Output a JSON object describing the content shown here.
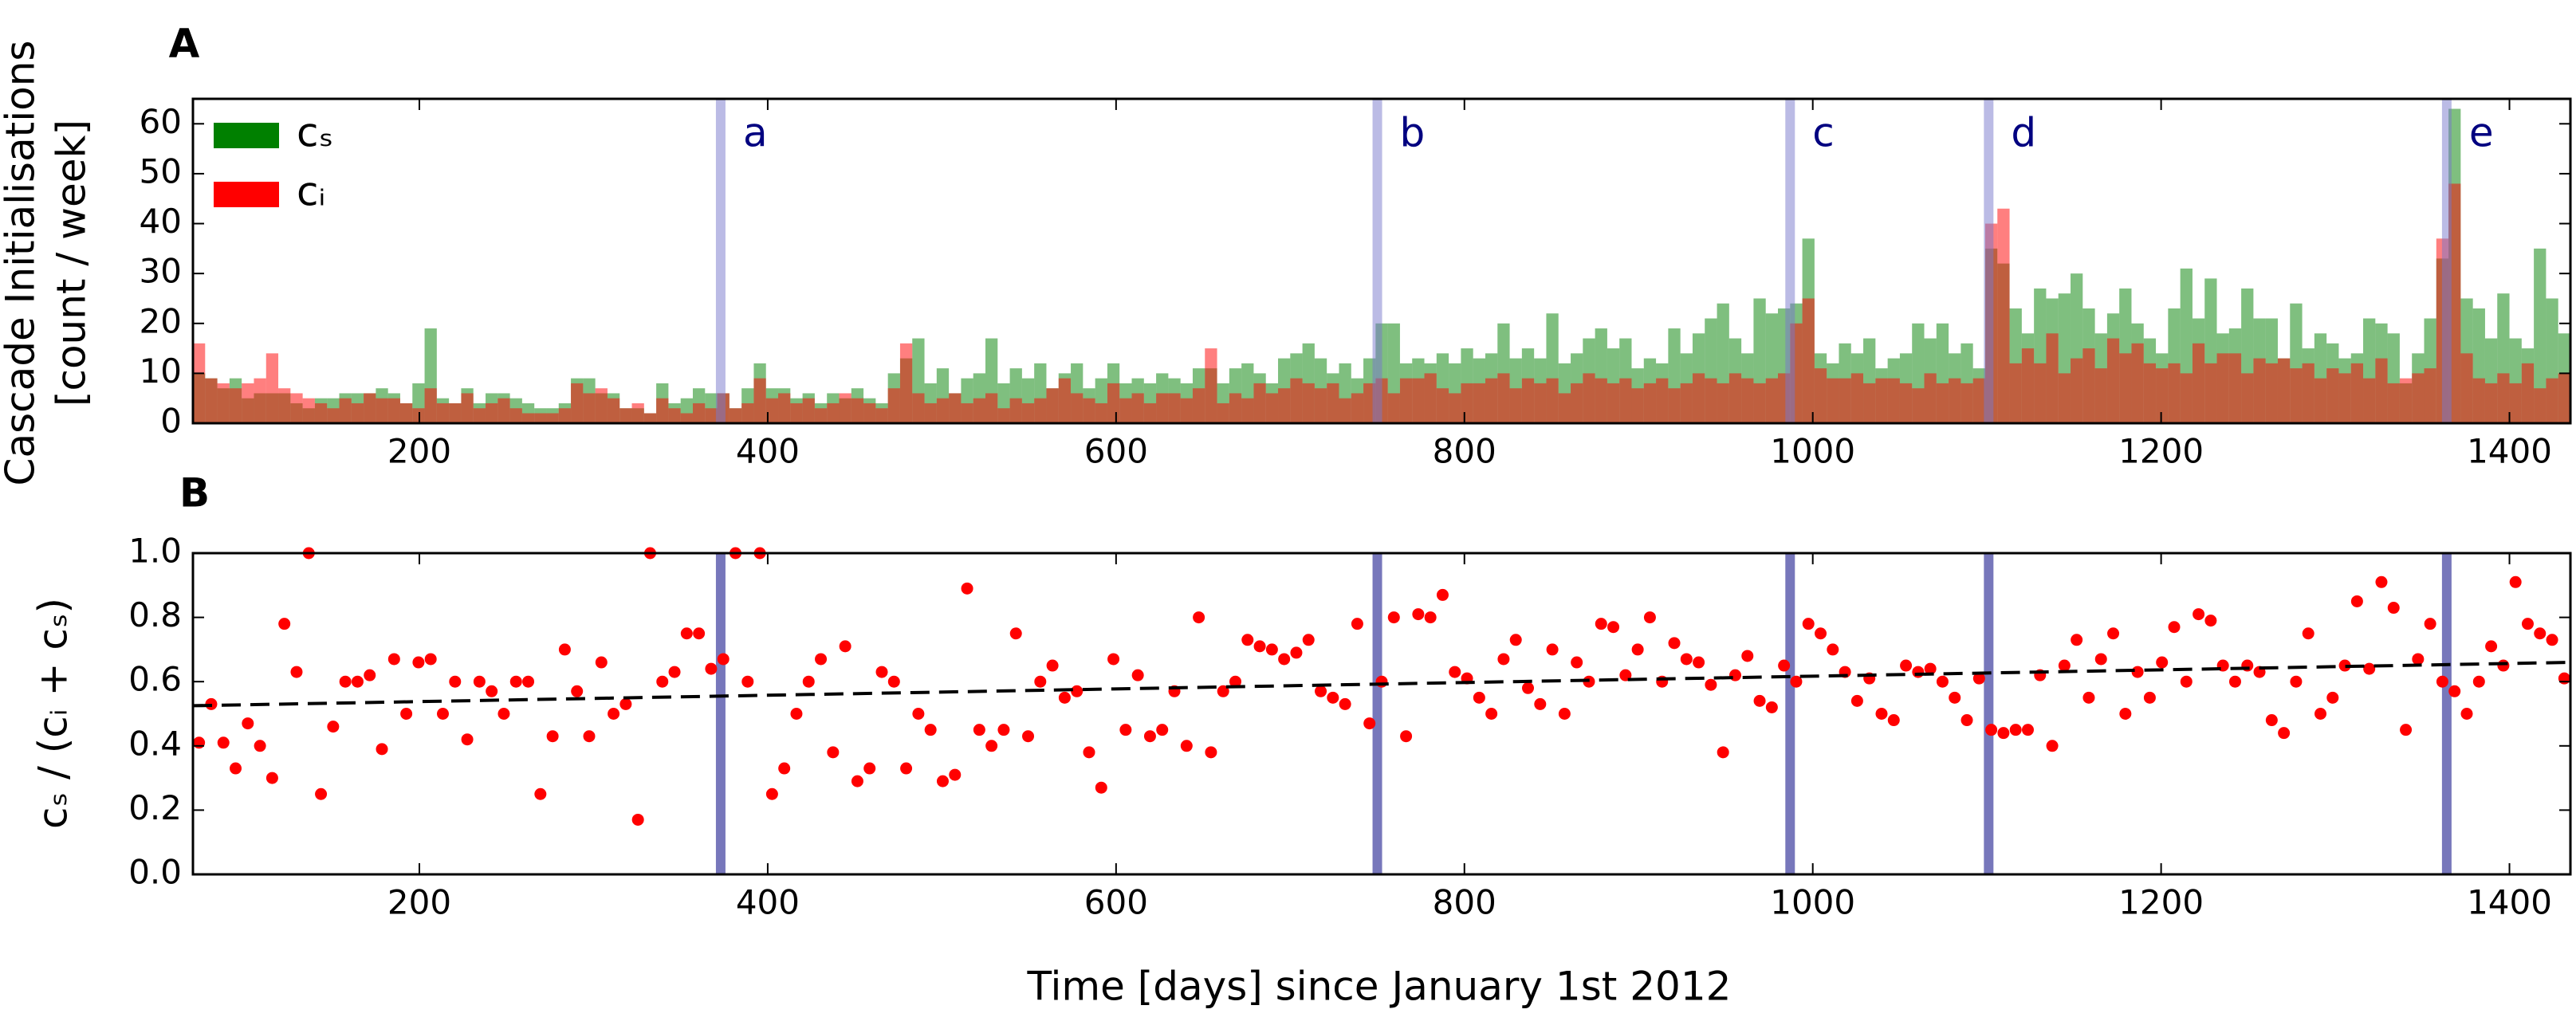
{
  "chart_data": [
    {
      "type": "histogram",
      "panel_label": "A",
      "ylabel": [
        "Cascade Initialisations",
        "[count / week]"
      ],
      "xlim": [
        70,
        1435
      ],
      "ylim": [
        0,
        65
      ],
      "xticks": [
        200,
        400,
        600,
        800,
        1000,
        1200,
        1400
      ],
      "yticks": [
        0,
        10,
        20,
        30,
        40,
        50,
        60
      ],
      "legend": "upper left",
      "events": [
        {
          "x": 373,
          "label": "a"
        },
        {
          "x": 750,
          "label": "b"
        },
        {
          "x": 987,
          "label": "c"
        },
        {
          "x": 1101,
          "label": "d"
        },
        {
          "x": 1364,
          "label": "e"
        }
      ],
      "bins": [
        70,
        77,
        84,
        91,
        98,
        105,
        112,
        119,
        126,
        133,
        140,
        147,
        154,
        161,
        168,
        175,
        182,
        189,
        196,
        203,
        210,
        217,
        224,
        231,
        238,
        245,
        252,
        259,
        266,
        273,
        280,
        287,
        294,
        301,
        308,
        315,
        322,
        329,
        336,
        343,
        350,
        357,
        364,
        371,
        378,
        385,
        392,
        399,
        406,
        413,
        420,
        427,
        434,
        441,
        448,
        455,
        462,
        469,
        476,
        483,
        490,
        497,
        504,
        511,
        518,
        525,
        532,
        539,
        546,
        553,
        560,
        567,
        574,
        581,
        588,
        595,
        602,
        609,
        616,
        623,
        630,
        637,
        644,
        651,
        658,
        665,
        672,
        679,
        686,
        693,
        700,
        707,
        714,
        721,
        728,
        735,
        742,
        749,
        756,
        763,
        770,
        777,
        784,
        791,
        798,
        805,
        812,
        819,
        826,
        833,
        840,
        847,
        854,
        861,
        868,
        875,
        882,
        889,
        896,
        903,
        910,
        917,
        924,
        931,
        938,
        945,
        952,
        959,
        966,
        973,
        980,
        987,
        994,
        1001,
        1008,
        1015,
        1022,
        1029,
        1036,
        1043,
        1050,
        1057,
        1064,
        1071,
        1078,
        1085,
        1092,
        1099,
        1106,
        1113,
        1120,
        1127,
        1134,
        1141,
        1148,
        1155,
        1162,
        1169,
        1176,
        1183,
        1190,
        1197,
        1204,
        1211,
        1218,
        1225,
        1232,
        1239,
        1246,
        1253,
        1260,
        1267,
        1274,
        1281,
        1288,
        1295,
        1302,
        1309,
        1316,
        1323,
        1330,
        1337,
        1344,
        1351,
        1358,
        1365,
        1372,
        1379,
        1386,
        1393,
        1400,
        1407,
        1414,
        1421,
        1428,
        1435
      ],
      "series": [
        {
          "name": "cₛ",
          "color": "#008000",
          "values": [
            10,
            9,
            7,
            9,
            5,
            6,
            6,
            6,
            4,
            3,
            5,
            5,
            6,
            6,
            6,
            7,
            6,
            4,
            8,
            19,
            5,
            4,
            7,
            4,
            6,
            6,
            5,
            4,
            3,
            3,
            4,
            9,
            9,
            6,
            6,
            3,
            3,
            2,
            8,
            4,
            5,
            7,
            6,
            6,
            3,
            7,
            12,
            7,
            7,
            5,
            6,
            4,
            6,
            5,
            7,
            5,
            4,
            10,
            13,
            17,
            8,
            11,
            6,
            9,
            10,
            17,
            8,
            11,
            9,
            12,
            7,
            10,
            12,
            7,
            9,
            12,
            8,
            9,
            8,
            10,
            9,
            8,
            11,
            11,
            8,
            11,
            12,
            10,
            8,
            13,
            14,
            16,
            13,
            10,
            12,
            9,
            13,
            20,
            20,
            12,
            13,
            12,
            14,
            12,
            15,
            13,
            14,
            20,
            13,
            15,
            13,
            22,
            12,
            14,
            17,
            19,
            15,
            17,
            11,
            13,
            12,
            19,
            14,
            18,
            21,
            24,
            17,
            14,
            25,
            22,
            23,
            24,
            37,
            14,
            12,
            16,
            14,
            17,
            11,
            13,
            14,
            20,
            17,
            20,
            14,
            16,
            11,
            35,
            32,
            23,
            18,
            27,
            25,
            26,
            30,
            23,
            18,
            22,
            27,
            20,
            17,
            14,
            23,
            31,
            21,
            29,
            18,
            19,
            27,
            21,
            21,
            13,
            24,
            15,
            18,
            16,
            13,
            14,
            21,
            20,
            18,
            8,
            14,
            21,
            33,
            63,
            25,
            23,
            17,
            26,
            17,
            15,
            35,
            25,
            18
          ]
        },
        {
          "name": "cᵢ",
          "color": "#ff0000",
          "values": [
            16,
            9,
            8,
            7,
            8,
            9,
            14,
            7,
            6,
            5,
            4,
            3,
            5,
            4,
            6,
            5,
            5,
            4,
            3,
            7,
            4,
            4,
            6,
            3,
            4,
            5,
            3,
            2,
            2,
            2,
            3,
            8,
            6,
            7,
            5,
            3,
            4,
            2,
            5,
            3,
            2,
            4,
            3,
            6,
            3,
            4,
            9,
            5,
            6,
            4,
            5,
            3,
            4,
            6,
            5,
            4,
            3,
            7,
            16,
            6,
            4,
            5,
            6,
            4,
            5,
            6,
            3,
            5,
            4,
            5,
            7,
            9,
            6,
            5,
            4,
            8,
            5,
            6,
            4,
            6,
            6,
            5,
            7,
            15,
            4,
            6,
            5,
            8,
            6,
            7,
            9,
            8,
            7,
            8,
            5,
            6,
            8,
            9,
            6,
            9,
            9,
            10,
            7,
            6,
            8,
            8,
            9,
            10,
            7,
            9,
            8,
            9,
            6,
            8,
            10,
            9,
            8,
            9,
            7,
            8,
            9,
            7,
            8,
            10,
            9,
            8,
            10,
            9,
            8,
            9,
            10,
            20,
            25,
            11,
            9,
            9,
            10,
            8,
            9,
            9,
            8,
            7,
            10,
            8,
            9,
            8,
            9,
            40,
            43,
            12,
            15,
            12,
            18,
            10,
            13,
            15,
            11,
            17,
            14,
            16,
            12,
            11,
            12,
            10,
            16,
            12,
            14,
            14,
            10,
            13,
            12,
            13,
            11,
            12,
            9,
            11,
            10,
            12,
            9,
            13,
            8,
            9,
            10,
            11,
            37,
            48,
            14,
            9,
            8,
            10,
            8,
            12,
            7,
            9,
            10
          ]
        }
      ]
    },
    {
      "type": "scatter",
      "panel_label": "B",
      "ylabel": "cₛ / (cᵢ + cₛ)",
      "xlabel": "Time [days] since January 1st 2012",
      "xlim": [
        70,
        1435
      ],
      "ylim": [
        0,
        1
      ],
      "xticks": [
        200,
        400,
        600,
        800,
        1000,
        1200,
        1400
      ],
      "yticks": [
        {
          "value": 0,
          "label": "0.0"
        },
        0.2,
        0.4,
        0.6,
        0.8,
        {
          "value": 1,
          "label": "1.0"
        }
      ],
      "color": "#ff0000",
      "event_color": "#7777bb",
      "x": [
        73.5,
        80.5,
        87.5,
        94.5,
        101.5,
        108.5,
        115.5,
        122.5,
        129.5,
        136.5,
        143.5,
        150.5,
        157.5,
        164.5,
        171.5,
        178.5,
        185.5,
        192.5,
        199.5,
        206.5,
        213.5,
        220.5,
        227.5,
        234.5,
        241.5,
        248.5,
        255.5,
        262.5,
        269.5,
        276.5,
        283.5,
        290.5,
        297.5,
        304.5,
        311.5,
        318.5,
        325.5,
        332.5,
        339.5,
        346.5,
        353.5,
        360.5,
        367.5,
        374.5,
        381.5,
        388.5,
        395.5,
        402.5,
        409.5,
        416.5,
        423.5,
        430.5,
        437.5,
        444.5,
        451.5,
        458.5,
        465.5,
        472.5,
        479.5,
        486.5,
        493.5,
        500.5,
        507.5,
        514.5,
        521.5,
        528.5,
        535.5,
        542.5,
        549.5,
        556.5,
        563.5,
        570.5,
        577.5,
        584.5,
        591.5,
        598.5,
        605.5,
        612.5,
        619.5,
        626.5,
        633.5,
        640.5,
        647.5,
        654.5,
        661.5,
        668.5,
        675.5,
        682.5,
        689.5,
        696.5,
        703.5,
        710.5,
        717.5,
        724.5,
        731.5,
        738.5,
        745.5,
        752.5,
        759.5,
        766.5,
        773.5,
        780.5,
        787.5,
        794.5,
        801.5,
        808.5,
        815.5,
        822.5,
        829.5,
        836.5,
        843.5,
        850.5,
        857.5,
        864.5,
        871.5,
        878.5,
        885.5,
        892.5,
        899.5,
        906.5,
        913.5,
        920.5,
        927.5,
        934.5,
        941.5,
        948.5,
        955.5,
        962.5,
        969.5,
        976.5,
        983.5,
        990.5,
        997.5,
        1004.5,
        1011.5,
        1018.5,
        1025.5,
        1032.5,
        1039.5,
        1046.5,
        1053.5,
        1060.5,
        1067.5,
        1074.5,
        1081.5,
        1088.5,
        1095.5,
        1102.5,
        1109.5,
        1116.5,
        1123.5,
        1130.5,
        1137.5,
        1144.5,
        1151.5,
        1158.5,
        1165.5,
        1172.5,
        1179.5,
        1186.5,
        1193.5,
        1200.5,
        1207.5,
        1214.5,
        1221.5,
        1228.5,
        1235.5,
        1242.5,
        1249.5,
        1256.5,
        1263.5,
        1270.5,
        1277.5,
        1284.5,
        1291.5,
        1298.5,
        1305.5,
        1312.5,
        1319.5,
        1326.5,
        1333.5,
        1340.5,
        1347.5,
        1354.5,
        1361.5,
        1368.5,
        1375.5,
        1382.5,
        1389.5,
        1396.5,
        1403.5,
        1410.5,
        1417.5,
        1424.5,
        1431.5
      ],
      "values": [
        0.41,
        0.53,
        0.41,
        0.33,
        0.47,
        0.4,
        0.3,
        0.78,
        0.63,
        1.0,
        0.25,
        0.46,
        0.6,
        0.6,
        0.62,
        0.39,
        0.67,
        0.5,
        0.66,
        0.67,
        0.5,
        0.6,
        0.42,
        0.6,
        0.57,
        0.5,
        0.6,
        0.6,
        0.25,
        0.43,
        0.7,
        0.57,
        0.43,
        0.66,
        0.5,
        0.53,
        0.17,
        1.0,
        0.6,
        0.63,
        0.75,
        0.75,
        0.64,
        0.67,
        1.0,
        0.6,
        1.0,
        0.25,
        0.33,
        0.5,
        0.6,
        0.67,
        0.38,
        0.71,
        0.29,
        0.33,
        0.63,
        0.6,
        0.33,
        0.5,
        0.45,
        0.29,
        0.31,
        0.89,
        0.45,
        0.4,
        0.45,
        0.75,
        0.43,
        0.6,
        0.65,
        0.55,
        0.57,
        0.38,
        0.27,
        0.67,
        0.45,
        0.62,
        0.43,
        0.45,
        0.57,
        0.4,
        0.8,
        0.38,
        0.57,
        0.6,
        0.73,
        0.71,
        0.7,
        0.67,
        0.69,
        0.73,
        0.57,
        0.55,
        0.53,
        0.78,
        0.47,
        0.6,
        0.8,
        0.43,
        0.81,
        0.8,
        0.87,
        0.63,
        0.61,
        0.55,
        0.5,
        0.67,
        0.73,
        0.58,
        0.53,
        0.7,
        0.5,
        0.66,
        0.6,
        0.78,
        0.77,
        0.62,
        0.7,
        0.8,
        0.6,
        0.72,
        0.67,
        0.66,
        0.59,
        0.38,
        0.62,
        0.68,
        0.54,
        0.52,
        0.65,
        0.6,
        0.78,
        0.75,
        0.7,
        0.63,
        0.54,
        0.61,
        0.5,
        0.48,
        0.65,
        0.63,
        0.64,
        0.6,
        0.55,
        0.48,
        0.61,
        0.45,
        0.44,
        0.45,
        0.45,
        0.62,
        0.4,
        0.65,
        0.73,
        0.55,
        0.67,
        0.75,
        0.5,
        0.63,
        0.55,
        0.66,
        0.77,
        0.6,
        0.81,
        0.79,
        0.65,
        0.6,
        0.65,
        0.63,
        0.48,
        0.44,
        0.6,
        0.75,
        0.5,
        0.55,
        0.65,
        0.85,
        0.64,
        0.91,
        0.83,
        0.45,
        0.67,
        0.78,
        0.6,
        0.57,
        0.5,
        0.6,
        0.71,
        0.65,
        0.91,
        0.78,
        0.75,
        0.73,
        0.61
      ],
      "trend": {
        "x": [
          70,
          1435
        ],
        "values": [
          0.525,
          0.66
        ]
      }
    }
  ]
}
